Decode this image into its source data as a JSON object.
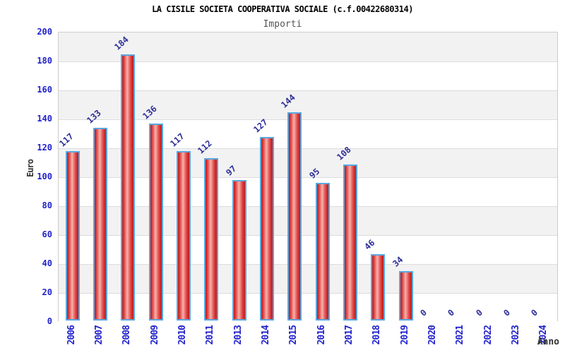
{
  "chart": {
    "title": "LA CISILE SOCIETA COOPERATIVA SOCIALE (c.f.00422680314)",
    "subtitle": "Importi",
    "y_axis_label": "Euro",
    "x_axis_label": "Anno"
  },
  "chart_data": {
    "type": "bar",
    "title": "LA CISILE SOCIETA COOPERATIVA SOCIALE (c.f.00422680314)",
    "subtitle": "Importi",
    "xlabel": "Anno",
    "ylabel": "Euro",
    "categories": [
      "2006",
      "2007",
      "2008",
      "2009",
      "2010",
      "2011",
      "2013",
      "2014",
      "2015",
      "2016",
      "2017",
      "2018",
      "2019",
      "2020",
      "2021",
      "2022",
      "2023",
      "2024"
    ],
    "values": [
      117,
      133,
      184,
      136,
      117,
      112,
      97,
      127,
      144,
      95,
      108,
      46,
      34,
      0,
      0,
      0,
      0,
      0
    ],
    "ylim": [
      0,
      200
    ],
    "yticks": [
      0,
      20,
      40,
      60,
      80,
      100,
      120,
      140,
      160,
      180,
      200
    ],
    "grid": true,
    "legend": "none",
    "colors": {
      "bar_edge": "#b81818",
      "bar_shoulder": "#e04545",
      "bar_center": "#f6b2aa",
      "bar_border": "#5aa7e0",
      "tick_label": "#2121cc",
      "value_label": "#2f2f99",
      "band_gray": "#f2f2f2",
      "band_white": "#ffffff",
      "gridline": "#dcdcdc",
      "plot_border": "#cccccc",
      "title": "#000000",
      "subtitle": "#555555",
      "axis_title": "#333333"
    }
  }
}
